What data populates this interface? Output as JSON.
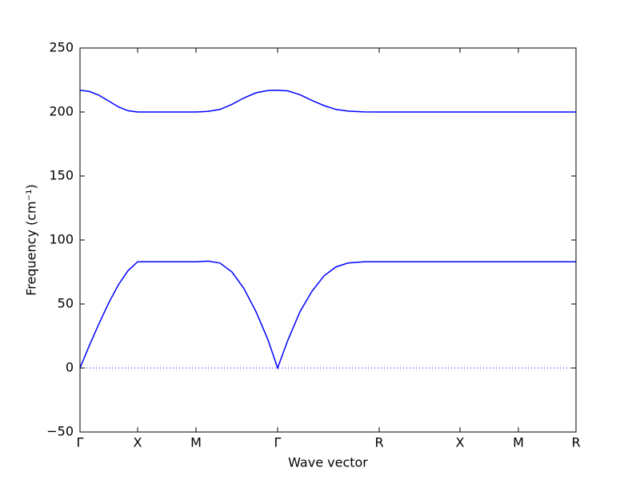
{
  "chart_data": {
    "type": "line",
    "xlabel": "Wave vector",
    "ylabel": "Frequency (cm⁻¹)",
    "xlim": [
      0,
      620
    ],
    "ylim": [
      -50,
      250
    ],
    "xticks": [
      {
        "value": 0,
        "label": "Γ"
      },
      {
        "value": 72,
        "label": "X"
      },
      {
        "value": 145,
        "label": "M"
      },
      {
        "value": 247,
        "label": "Γ"
      },
      {
        "value": 374,
        "label": "R"
      },
      {
        "value": 475,
        "label": "X"
      },
      {
        "value": 548,
        "label": "M"
      },
      {
        "value": 620,
        "label": "R"
      }
    ],
    "yticks": [
      {
        "value": -50,
        "label": "−50"
      },
      0,
      50,
      100,
      150,
      200,
      250
    ],
    "reference_line": {
      "value": 0,
      "color": "#0000ff",
      "style": "dotted"
    },
    "series": [
      {
        "color": "#0000ff",
        "x": [
          0,
          12,
          24,
          36,
          48,
          60,
          72,
          100,
          145,
          160,
          175,
          190,
          205,
          220,
          235,
          247,
          260,
          275,
          290,
          305,
          320,
          335,
          355,
          374,
          475,
          548,
          620
        ],
        "values": [
          217,
          216,
          213,
          208.5,
          204,
          201,
          200,
          200,
          200,
          200.5,
          202,
          206,
          211,
          215,
          216.8,
          217,
          216.5,
          213.5,
          209,
          205,
          202,
          200.7,
          200.1,
          200,
          200,
          200,
          200
        ]
      },
      {
        "color": "#0000ff",
        "x": [
          0,
          12,
          24,
          36,
          48,
          60,
          72,
          100,
          145,
          160,
          175,
          190,
          205,
          220,
          235,
          247,
          260,
          275,
          290,
          305,
          320,
          335,
          355,
          374,
          475,
          548,
          620
        ],
        "values": [
          0,
          18,
          35,
          51,
          65,
          76,
          83,
          83,
          83,
          83.5,
          82,
          75,
          62,
          44,
          22,
          0,
          22,
          44,
          60,
          72,
          79,
          82,
          83,
          83,
          83,
          83,
          83
        ]
      }
    ]
  }
}
